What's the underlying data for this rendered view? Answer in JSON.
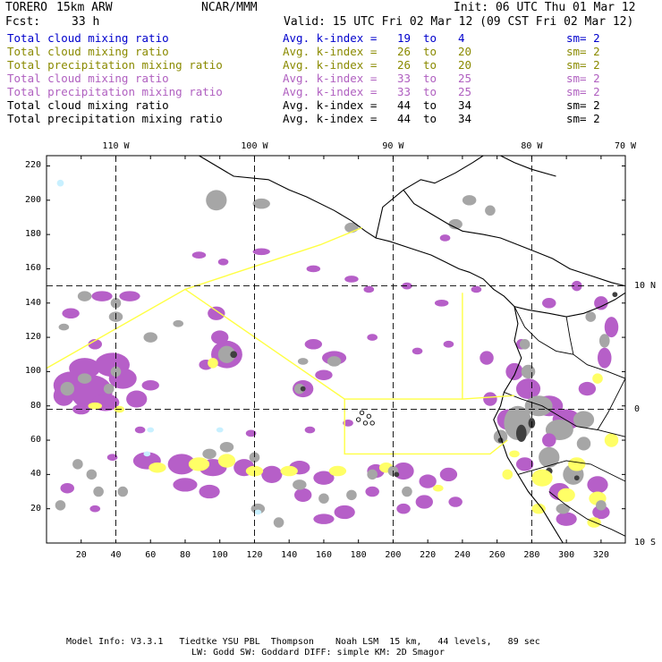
{
  "header": {
    "model": "TORERO",
    "resolution": "15km ARW",
    "institution": "NCAR/MMM",
    "init": "Init: 06 UTC Thu 01 Mar 12",
    "fcst_label": "Fcst:",
    "fcst_value": "33 h",
    "valid": "Valid: 15 UTC Fri 02 Mar 12 (09 CST Fri 02 Mar 12)"
  },
  "legend": [
    {
      "field": "Total cloud mixing ratio",
      "index": "Avg. k-index =",
      "k_top": "19",
      "to": "to",
      "k_bottom": "4",
      "sm": "sm= 2",
      "color": "#0000cc"
    },
    {
      "field": "Total cloud mixing ratio",
      "index": "Avg. k-index =",
      "k_top": "26",
      "to": "to",
      "k_bottom": "20",
      "sm": "sm= 2",
      "color": "#8a8a00"
    },
    {
      "field": "Total precipitation mixing ratio",
      "index": "Avg. k-index =",
      "k_top": "26",
      "to": "to",
      "k_bottom": "20",
      "sm": "sm= 2",
      "color": "#8a8a00"
    },
    {
      "field": "Total cloud mixing ratio",
      "index": "Avg. k-index =",
      "k_top": "33",
      "to": "to",
      "k_bottom": "25",
      "sm": "sm= 2",
      "color": "#b060c0"
    },
    {
      "field": "Total precipitation mixing ratio",
      "index": "Avg. k-index =",
      "k_top": "33",
      "to": "to",
      "k_bottom": "25",
      "sm": "sm= 2",
      "color": "#b060c0"
    },
    {
      "field": "Total cloud mixing ratio",
      "index": "Avg. k-index =",
      "k_top": "44",
      "to": "to",
      "k_bottom": "34",
      "sm": "sm= 2",
      "color": "#000000"
    },
    {
      "field": "Total precipitation mixing ratio",
      "index": "Avg. k-index =",
      "k_top": "44",
      "to": "to",
      "k_bottom": "34",
      "sm": "sm= 2",
      "color": "#000000"
    }
  ],
  "map": {
    "lon_labels": [
      "110 W",
      "100 W",
      "90 W",
      "80 W",
      "70 W"
    ],
    "lat_labels": [
      "10 N",
      "0",
      "10 S"
    ],
    "x_ticks": [
      "20",
      "40",
      "60",
      "80",
      "100",
      "120",
      "140",
      "160",
      "180",
      "200",
      "220",
      "240",
      "260",
      "280",
      "300",
      "320"
    ],
    "y_ticks": [
      "20",
      "40",
      "60",
      "80",
      "100",
      "120",
      "140",
      "160",
      "180",
      "200",
      "220"
    ],
    "x_range": [
      0,
      334
    ],
    "y_range": [
      0,
      226
    ],
    "colors": {
      "grey": "#a6a6a6",
      "dark": "#404040",
      "purple": "#b65fc8",
      "yellow": "#ffff66",
      "cyan": "#c8f0ff",
      "boundary": "#ffff44",
      "coast": "#000000"
    }
  },
  "footer": {
    "line1": "Model Info: V3.3.1   Tiedtke YSU PBL  Thompson    Noah LSM  15 km,   44 levels,   89 sec",
    "line2": "LW: Godd SW: Goddard DIFF: simple KM: 2D Smagor"
  }
}
